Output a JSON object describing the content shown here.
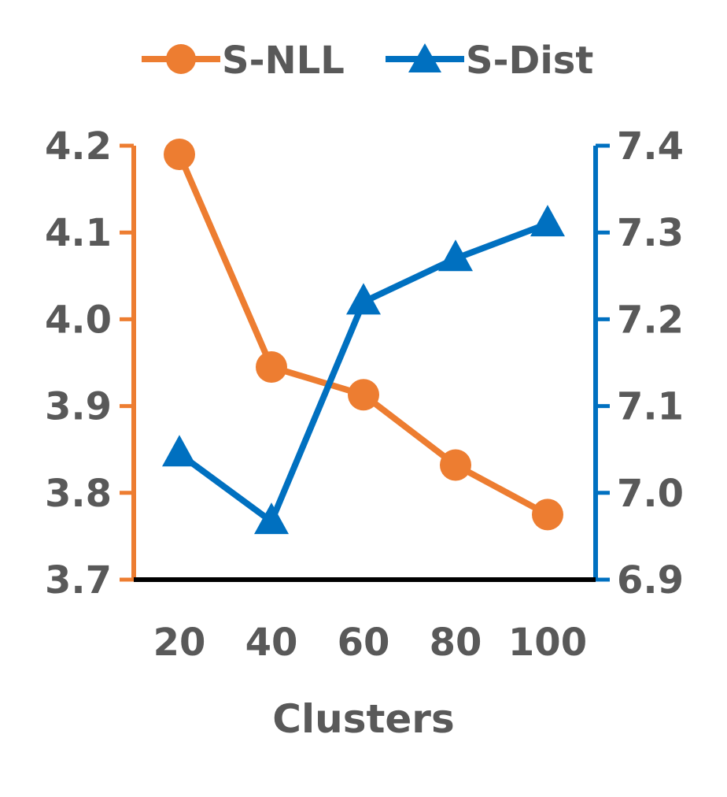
{
  "chart_data": {
    "type": "line",
    "title": "",
    "xlabel": "Clusters",
    "categories": [
      "20",
      "40",
      "60",
      "80",
      "100"
    ],
    "left_axis": {
      "ylim": [
        3.7,
        4.2
      ],
      "ticks": [
        "3.7",
        "3.8",
        "3.9",
        "4.0",
        "4.1",
        "4.2"
      ],
      "color": "#ED7D31"
    },
    "right_axis": {
      "ylim": [
        6.9,
        7.4
      ],
      "ticks": [
        "6.9",
        "7.0",
        "7.1",
        "7.2",
        "7.3",
        "7.4"
      ],
      "color": "#0070C0"
    },
    "series": [
      {
        "name": "S-NLL",
        "axis": "left",
        "marker": "circle",
        "color": "#ED7D31",
        "values": [
          4.19,
          3.945,
          3.913,
          3.832,
          3.775
        ]
      },
      {
        "name": "S-Dist",
        "axis": "right",
        "marker": "triangle",
        "color": "#0070C0",
        "values": [
          7.045,
          6.967,
          7.22,
          7.27,
          7.31
        ]
      }
    ],
    "legend": "top",
    "grid": false
  }
}
